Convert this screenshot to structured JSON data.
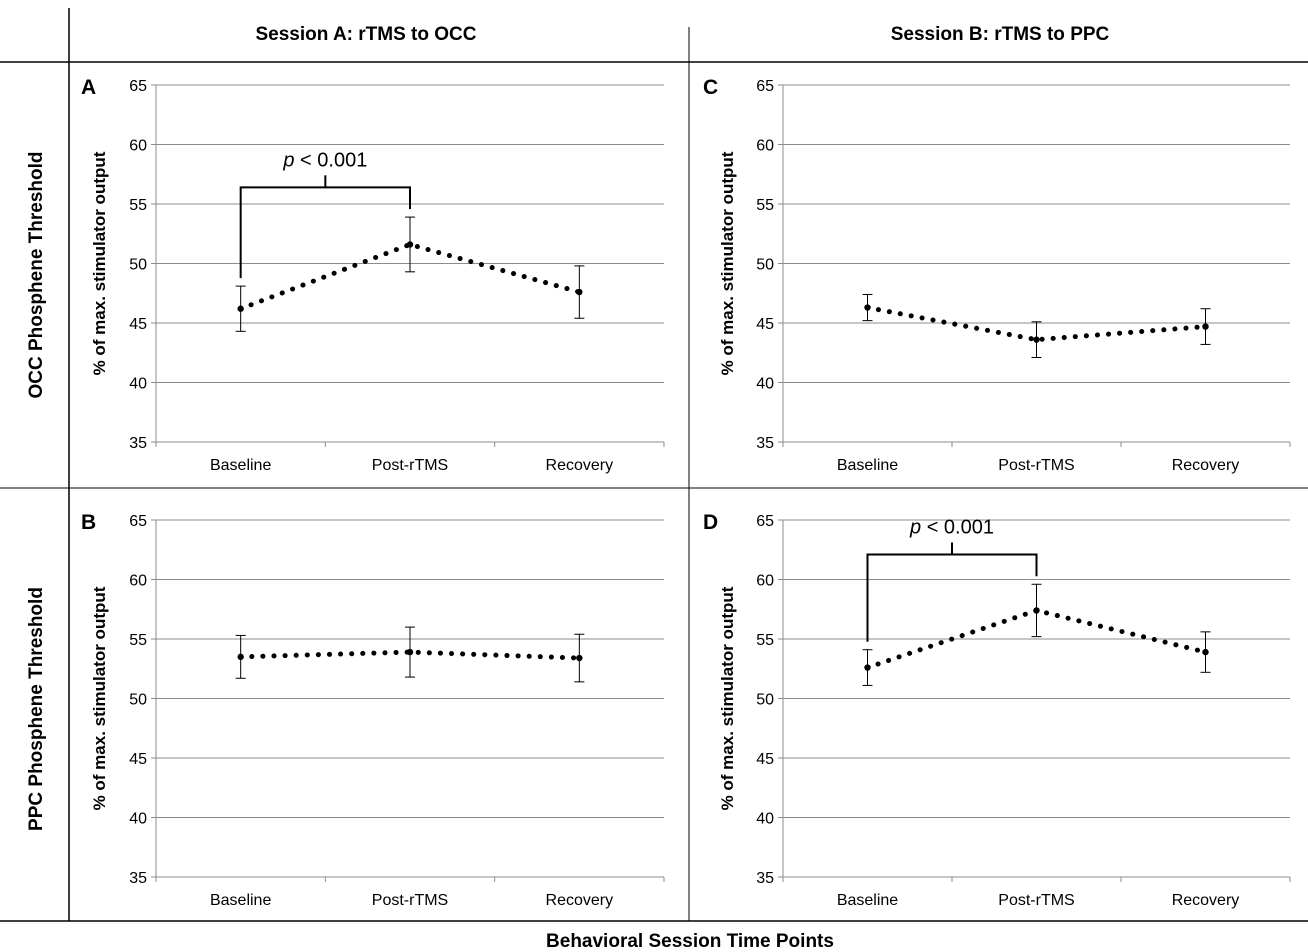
{
  "headers": {
    "col_a": "Session A: rTMS to OCC",
    "col_b": "Session B: rTMS to PPC",
    "row_1": "OCC Phosphene Threshold",
    "row_2": "PPC Phosphene Threshold",
    "footer": "Behavioral Session Time Points"
  },
  "chart_data": [
    {
      "panel": "A",
      "type": "line",
      "categories": [
        "Baseline",
        "Post-rTMS",
        "Recovery"
      ],
      "series": [
        {
          "values": [
            46.2,
            51.6,
            47.6
          ],
          "error": [
            1.9,
            2.3,
            2.2
          ]
        }
      ],
      "ylabel": "% of max. stimulator output",
      "ylim": [
        35,
        65
      ],
      "yticks": [
        35,
        40,
        45,
        50,
        55,
        60,
        65
      ],
      "grid": true,
      "annotation": {
        "italic": "p",
        "rest": " < 0.001",
        "from": "Baseline",
        "to": "Post-rTMS"
      }
    },
    {
      "panel": "C",
      "type": "line",
      "categories": [
        "Baseline",
        "Post-rTMS",
        "Recovery"
      ],
      "series": [
        {
          "values": [
            46.3,
            43.6,
            44.7
          ],
          "error": [
            1.1,
            1.5,
            1.5
          ]
        }
      ],
      "ylabel": "% of max. stimulator output",
      "ylim": [
        35,
        65
      ],
      "yticks": [
        35,
        40,
        45,
        50,
        55,
        60,
        65
      ],
      "grid": true
    },
    {
      "panel": "B",
      "type": "line",
      "categories": [
        "Baseline",
        "Post-rTMS",
        "Recovery"
      ],
      "series": [
        {
          "values": [
            53.5,
            53.9,
            53.4
          ],
          "error": [
            1.8,
            2.1,
            2.0
          ]
        }
      ],
      "ylabel": "% of max. stimulator output",
      "ylim": [
        35,
        65
      ],
      "yticks": [
        35,
        40,
        45,
        50,
        55,
        60,
        65
      ],
      "grid": true
    },
    {
      "panel": "D",
      "type": "line",
      "categories": [
        "Baseline",
        "Post-rTMS",
        "Recovery"
      ],
      "series": [
        {
          "values": [
            52.6,
            57.4,
            53.9
          ],
          "error": [
            1.5,
            2.2,
            1.7
          ]
        }
      ],
      "ylabel": "% of max. stimulator output",
      "ylim": [
        35,
        65
      ],
      "yticks": [
        35,
        40,
        45,
        50,
        55,
        60,
        65
      ],
      "grid": true,
      "annotation": {
        "italic": "p",
        "rest": " < 0.001",
        "from": "Baseline",
        "to": "Post-rTMS"
      }
    }
  ]
}
